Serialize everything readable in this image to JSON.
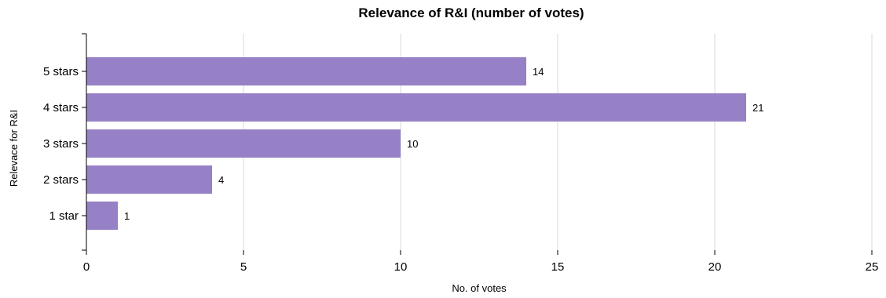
{
  "chart_data": {
    "type": "bar",
    "orientation": "horizontal",
    "title": "Relevance of R&I (number of votes)",
    "xlabel": "No. of votes",
    "ylabel": "Relevace for R&I",
    "categories": [
      "5 stars",
      "4 stars",
      "3 stars",
      "2 stars",
      "1 star"
    ],
    "values": [
      14,
      21,
      10,
      4,
      1
    ],
    "xlim": [
      0,
      25
    ],
    "xticks": [
      0,
      5,
      10,
      15,
      20,
      25
    ],
    "grid": "vertical",
    "legend": "none",
    "bar_color": "#9680c6"
  }
}
